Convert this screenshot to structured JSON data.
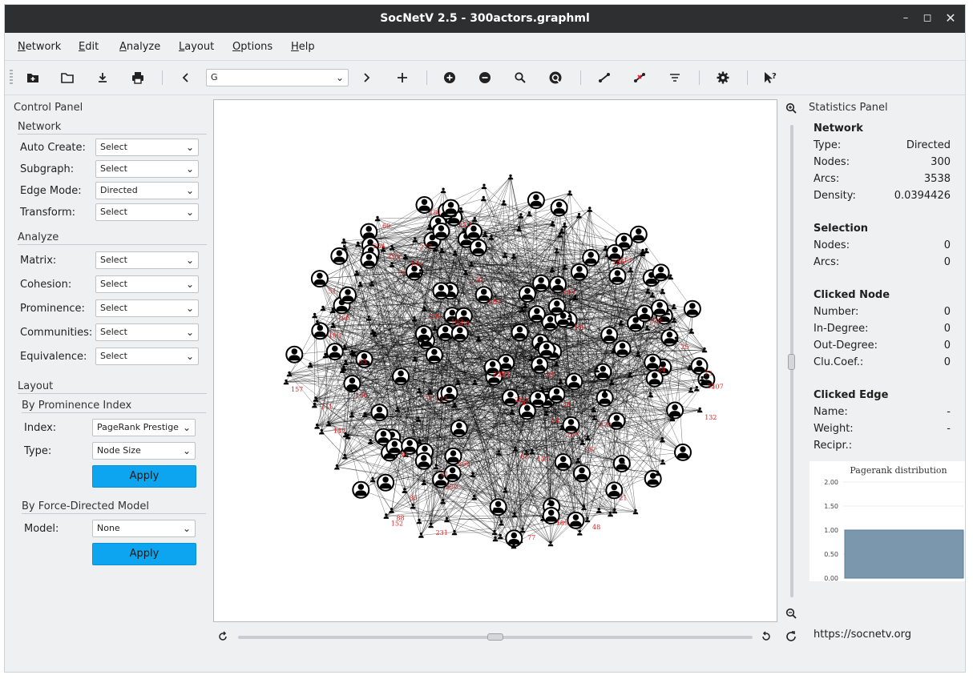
{
  "window": {
    "title": "SocNetV 2.5 - 300actors.graphml"
  },
  "menu": [
    {
      "u": "N",
      "rest": "etwork"
    },
    {
      "u": "E",
      "rest": "dit"
    },
    {
      "u": "A",
      "rest": "nalyze"
    },
    {
      "u": "L",
      "rest": "ayout"
    },
    {
      "u": "O",
      "rest": "ptions"
    },
    {
      "u": "H",
      "rest": "elp"
    }
  ],
  "toolbar": {
    "node_combo": "G",
    "icons": [
      "new-network-icon",
      "open-folder-icon",
      "save-download-icon",
      "print-icon",
      "previous-icon",
      "next-icon",
      "add-node-icon",
      "zoom-in-node-icon",
      "remove-node-icon",
      "find-node-icon",
      "refresh-layout-icon",
      "add-edge-icon",
      "remove-edge-icon",
      "filter-icon",
      "settings-icon",
      "whats-this-icon"
    ]
  },
  "control_panel": {
    "title": "Control Panel",
    "network": {
      "title": "Network",
      "rows": [
        {
          "label": "Auto Create:",
          "value": "Select"
        },
        {
          "label": "Subgraph:",
          "value": "Select"
        },
        {
          "label": "Edge Mode:",
          "value": "Directed"
        },
        {
          "label": "Transform:",
          "value": "Select"
        }
      ]
    },
    "analyze": {
      "title": "Analyze",
      "rows": [
        {
          "label": "Matrix:",
          "value": "Select"
        },
        {
          "label": "Cohesion:",
          "value": "Select"
        },
        {
          "label": "Prominence:",
          "value": "Select"
        },
        {
          "label": "Communities:",
          "value": "Select"
        },
        {
          "label": "Equivalence:",
          "value": "Select"
        }
      ]
    },
    "layout": {
      "title": "Layout",
      "prominence": {
        "title": "By Prominence Index",
        "index_label": "Index:",
        "index_value": "PageRank Prestige",
        "type_label": "Type:",
        "type_value": "Node Size",
        "apply": "Apply"
      },
      "force": {
        "title": "By Force-Directed Model",
        "model_label": "Model:",
        "model_value": "None",
        "apply": "Apply"
      }
    }
  },
  "graph": {
    "labels": [
      "230",
      "246",
      "252",
      "254",
      "257",
      "277",
      "169",
      "287",
      "288",
      "290",
      "299",
      "16",
      "21",
      "24",
      "25",
      "28",
      "30",
      "45",
      "48",
      "51",
      "61",
      "62",
      "73",
      "77",
      "88",
      "97",
      "100",
      "107",
      "108",
      "113",
      "127",
      "132",
      "137",
      "147",
      "150",
      "152",
      "156",
      "157",
      "166",
      "167",
      "181",
      "189",
      "190",
      "195",
      "209",
      "211",
      "220",
      "228",
      "231",
      "263",
      "278",
      "293",
      "33",
      "46",
      "65",
      "69",
      "73",
      "85"
    ]
  },
  "statistics": {
    "title": "Statistics Panel",
    "network": {
      "title": "Network",
      "rows": [
        {
          "k": "Type:",
          "v": "Directed"
        },
        {
          "k": "Nodes:",
          "v": "300"
        },
        {
          "k": "Arcs:",
          "v": "3538"
        },
        {
          "k": "Density:",
          "v": "0.0394426"
        }
      ]
    },
    "selection": {
      "title": "Selection",
      "rows": [
        {
          "k": "Nodes:",
          "v": "0"
        },
        {
          "k": "Arcs:",
          "v": "0"
        }
      ]
    },
    "clicked_node": {
      "title": "Clicked Node",
      "rows": [
        {
          "k": "Number:",
          "v": "0"
        },
        {
          "k": "In-Degree:",
          "v": "0"
        },
        {
          "k": "Out-Degree:",
          "v": "0"
        },
        {
          "k": "Clu.Coef.:",
          "v": "0"
        }
      ]
    },
    "clicked_edge": {
      "title": "Clicked Edge",
      "rows": [
        {
          "k": "Name:",
          "v": "-"
        },
        {
          "k": "Weight:",
          "v": "-"
        },
        {
          "k": "Recipr.:",
          "v": ""
        }
      ]
    }
  },
  "chart_data": {
    "type": "area",
    "title": "Pagerank distribution",
    "yticks": [
      "2.00",
      "1.50",
      "1.00",
      "0.50",
      "0.00"
    ],
    "ylim": [
      0,
      2
    ],
    "values": [
      1.0
    ],
    "fill_color": "#7a97ad"
  },
  "footer": {
    "url": "https://socnetv.org"
  },
  "colors": {
    "accent": "#0ea5f0",
    "node_label": "#e02020",
    "titlebar": "#2d2f31"
  }
}
